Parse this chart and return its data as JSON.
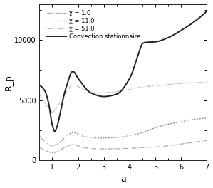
{
  "title": "",
  "xlabel": "a",
  "ylabel": "R_p",
  "xlim": [
    0.5,
    7.0
  ],
  "ylim": [
    0,
    13000
  ],
  "xticks": [
    1,
    2,
    3,
    4,
    5,
    6,
    7
  ],
  "yticks": [
    0,
    5000,
    10000
  ],
  "legend": [
    {
      "label": "χ = 1.0"
    },
    {
      "label": "χ = 11.0"
    },
    {
      "label": "χ = 51.0"
    },
    {
      "label": "Convection stationnaire"
    }
  ],
  "chi1_a": [
    0.5,
    0.8,
    1.0,
    1.15,
    1.5,
    1.8,
    2.2,
    2.8,
    3.5,
    4.0,
    4.5,
    5.0,
    5.5,
    6.0,
    6.5,
    7.0
  ],
  "chi1_v": [
    1100,
    750,
    600,
    680,
    1100,
    1300,
    1050,
    950,
    950,
    1000,
    1050,
    1100,
    1200,
    1350,
    1500,
    1650
  ],
  "chi11_a": [
    0.5,
    0.8,
    1.0,
    1.2,
    1.5,
    1.8,
    2.2,
    2.8,
    3.5,
    4.0,
    4.5,
    5.0,
    5.5,
    6.0,
    6.5,
    7.0
  ],
  "chi11_v": [
    2000,
    1400,
    1200,
    1350,
    1900,
    2300,
    2000,
    1850,
    1900,
    2050,
    2300,
    2700,
    3000,
    3200,
    3400,
    3500
  ],
  "chi51_a": [
    0.5,
    0.7,
    0.9,
    1.0,
    1.2,
    1.5,
    1.8,
    2.2,
    2.8,
    3.5,
    4.0,
    4.5,
    5.0,
    5.5,
    6.0,
    6.5,
    7.0
  ],
  "chi51_v": [
    5500,
    4800,
    4200,
    4000,
    4500,
    5500,
    6300,
    5900,
    5600,
    5700,
    5900,
    6100,
    6200,
    6300,
    6400,
    6450,
    6500
  ],
  "cs_a": [
    0.5,
    0.7,
    0.85,
    1.0,
    1.1,
    1.15,
    1.5,
    1.8,
    2.0,
    2.5,
    3.0,
    3.5,
    4.0,
    4.4,
    4.5,
    4.6,
    5.0,
    5.5,
    6.0,
    6.5,
    7.0
  ],
  "cs_v": [
    6200,
    5800,
    4800,
    2900,
    2400,
    2600,
    5800,
    7400,
    6800,
    5600,
    5300,
    5500,
    6800,
    9200,
    9700,
    9800,
    9850,
    10200,
    10800,
    11500,
    12400
  ],
  "background_color": "#ffffff",
  "color_chi1": "#aaaaaa",
  "color_chi11": "#888888",
  "color_chi51": "#bbbbbb",
  "color_cs": "#222222"
}
